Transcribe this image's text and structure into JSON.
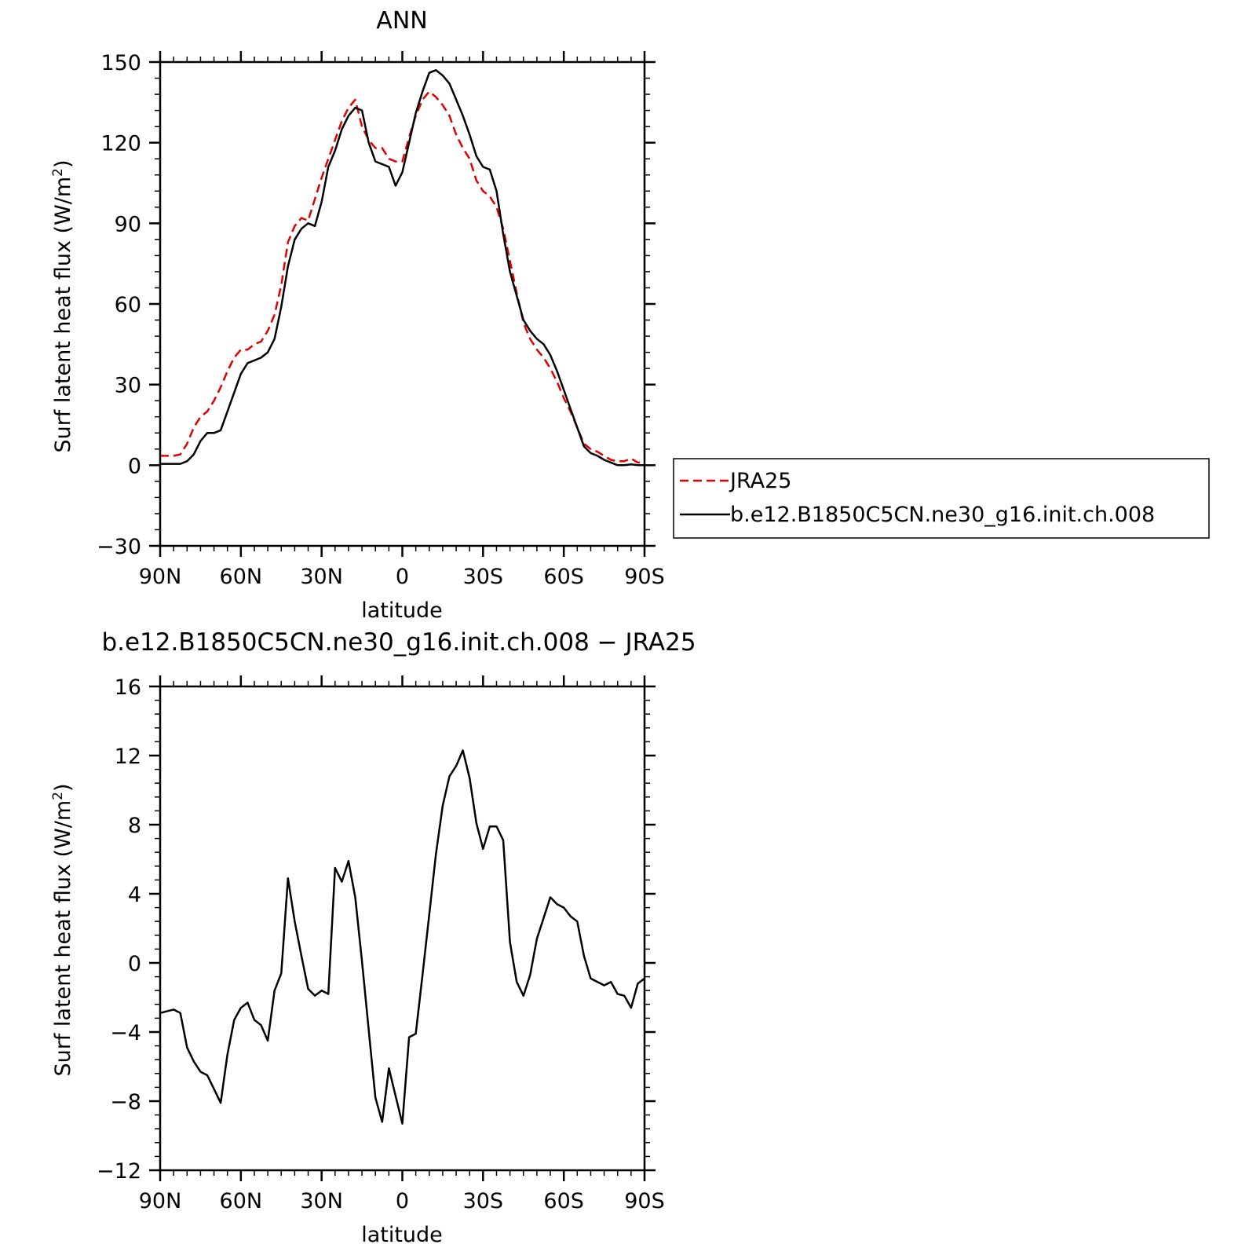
{
  "chart_data": [
    {
      "type": "line",
      "title": "ANN",
      "xlabel": "latitude",
      "ylabel": "Surf latent heat flux (W/m",
      "ylabel_sup": "2",
      "ylabel_end": ")",
      "xlim": [
        90,
        -90
      ],
      "ylim": [
        -30,
        150
      ],
      "y_ticks": [
        150,
        120,
        90,
        60,
        30,
        0,
        -30
      ],
      "y_tick_labels": [
        "150",
        "120",
        "90",
        "60",
        "30",
        "0",
        "−30"
      ],
      "x_ticks": [
        90,
        60,
        30,
        0,
        -30,
        -60,
        -90
      ],
      "x_tick_labels": [
        "90N",
        "60N",
        "30N",
        "0",
        "30S",
        "60S",
        "90S"
      ],
      "legend_position": "right",
      "series": [
        {
          "name": "JRA25",
          "color": "#e00000",
          "dash": "dashed",
          "x": [
            90,
            87.5,
            85,
            82.5,
            80,
            77.5,
            75,
            72.5,
            70,
            67.5,
            65,
            62.5,
            60,
            57.5,
            55,
            52.5,
            50,
            47.5,
            45,
            42.5,
            40,
            37.5,
            35,
            32.5,
            30,
            27.5,
            25,
            22.5,
            20,
            17.5,
            15,
            12.5,
            10,
            7.5,
            5,
            2.5,
            0,
            -2.5,
            -5,
            -7.5,
            -10,
            -12.5,
            -15,
            -17.5,
            -20,
            -22.5,
            -25,
            -27.5,
            -30,
            -32.5,
            -35,
            -37.5,
            -40,
            -42.5,
            -45,
            -47.5,
            -50,
            -52.5,
            -55,
            -57.5,
            -60,
            -62.5,
            -65,
            -67.5,
            -70,
            -72.5,
            -75,
            -77.5,
            -80,
            -82.5,
            -85,
            -87.5,
            -90
          ],
          "values": [
            3.5,
            3.5,
            3.5,
            4,
            8,
            14,
            18,
            20,
            24,
            29,
            35,
            40,
            43,
            43,
            45,
            46,
            50,
            56,
            67,
            83,
            89,
            92,
            91,
            99,
            107,
            114,
            121,
            128,
            133,
            136,
            126,
            121,
            118,
            118,
            114,
            113,
            113,
            122,
            130,
            136,
            139,
            137,
            134,
            130,
            123,
            118,
            114,
            106,
            102,
            100,
            96,
            88,
            76,
            64,
            53,
            47,
            43,
            40,
            36,
            31,
            25,
            20,
            14,
            8,
            6,
            5,
            3.5,
            2,
            1.5,
            1.5,
            2.5,
            1,
            1
          ]
        },
        {
          "name": "b.e12.B1850C5CN.ne30_g16.init.ch.008",
          "color": "#000000",
          "dash": "solid",
          "x": [
            90,
            87.5,
            85,
            82.5,
            80,
            77.5,
            75,
            72.5,
            70,
            67.5,
            65,
            62.5,
            60,
            57.5,
            55,
            52.5,
            50,
            47.5,
            45,
            42.5,
            40,
            37.5,
            35,
            32.5,
            30,
            27.5,
            25,
            22.5,
            20,
            17.5,
            15,
            12.5,
            10,
            7.5,
            5,
            2.5,
            0,
            -2.5,
            -5,
            -7.5,
            -10,
            -12.5,
            -15,
            -17.5,
            -20,
            -22.5,
            -25,
            -27.5,
            -30,
            -32.5,
            -35,
            -37.5,
            -40,
            -42.5,
            -45,
            -47.5,
            -50,
            -52.5,
            -55,
            -57.5,
            -60,
            -62.5,
            -65,
            -67.5,
            -70,
            -72.5,
            -75,
            -77.5,
            -80,
            -82.5,
            -85,
            -87.5,
            -90
          ],
          "values": [
            0.5,
            0.5,
            0.5,
            0.5,
            1.5,
            4,
            9,
            12,
            12,
            13,
            20,
            27,
            34,
            38,
            39,
            40,
            42,
            47,
            59,
            74,
            84,
            88,
            90,
            89,
            98,
            111,
            117,
            125,
            130,
            133,
            132,
            120,
            113,
            112,
            111,
            104,
            109,
            120,
            131,
            139,
            146,
            147,
            145,
            142,
            136,
            130,
            123,
            115,
            111,
            110,
            102,
            86,
            72,
            63,
            54,
            50,
            47,
            45,
            41,
            35,
            28,
            21,
            14,
            7,
            4.5,
            3.5,
            2,
            1,
            0,
            0,
            0.3,
            0,
            0
          ]
        }
      ]
    },
    {
      "type": "line",
      "title": "b.e12.B1850C5CN.ne30_g16.init.ch.008 − JRA25",
      "xlabel": "latitude",
      "ylabel": "Surf latent heat flux (W/m",
      "ylabel_sup": "2",
      "ylabel_end": ")",
      "xlim": [
        90,
        -90
      ],
      "ylim": [
        -12,
        16
      ],
      "y_ticks": [
        16,
        12,
        8,
        4,
        0,
        -4,
        -8,
        -12
      ],
      "y_tick_labels": [
        "16",
        "12",
        "8",
        "4",
        "0",
        "−4",
        "−8",
        "−12"
      ],
      "x_ticks": [
        90,
        60,
        30,
        0,
        -30,
        -60,
        -90
      ],
      "x_tick_labels": [
        "90N",
        "60N",
        "30N",
        "0",
        "30S",
        "60S",
        "90S"
      ],
      "series": [
        {
          "color": "#000000",
          "dash": "solid",
          "x": [
            90,
            87.5,
            85,
            82.5,
            80,
            77.5,
            75,
            72.5,
            70,
            67.5,
            65,
            62.5,
            60,
            57.5,
            55,
            52.5,
            50,
            47.5,
            45,
            42.5,
            40,
            37.5,
            35,
            32.5,
            30,
            27.5,
            25,
            22.5,
            20,
            17.5,
            15,
            12.5,
            10,
            7.5,
            5,
            2.5,
            0,
            -2.5,
            -5,
            -7.5,
            -10,
            -12.5,
            -15,
            -17.5,
            -20,
            -22.5,
            -25,
            -27.5,
            -30,
            -32.5,
            -35,
            -37.5,
            -40,
            -42.5,
            -45,
            -47.5,
            -50,
            -52.5,
            -55,
            -57.5,
            -60,
            -62.5,
            -65,
            -67.5,
            -70,
            -72.5,
            -75,
            -77.5,
            -80,
            -82.5,
            -85,
            -87.5,
            -90
          ],
          "values": [
            -2.9,
            -2.8,
            -2.7,
            -2.9,
            -4.9,
            -5.7,
            -6.3,
            -6.5,
            -7.3,
            -8.1,
            -5.3,
            -3.3,
            -2.6,
            -2.3,
            -3.3,
            -3.6,
            -4.5,
            -1.6,
            -0.6,
            4.9,
            2.4,
            0.4,
            -1.5,
            -1.9,
            -1.6,
            -1.8,
            5.5,
            4.7,
            5.9,
            3.8,
            0.1,
            -3.9,
            -7.8,
            -9.2,
            -6.1,
            -7.7,
            -9.3,
            -4.3,
            -4.1,
            -0.7,
            2.8,
            6.3,
            9.1,
            10.8,
            11.4,
            12.3,
            10.7,
            8.1,
            6.6,
            7.9,
            7.9,
            7.1,
            1.2,
            -1.1,
            -1.9,
            -0.7,
            1.4,
            2.6,
            3.8,
            3.4,
            3.2,
            2.7,
            2.4,
            0.4,
            -0.9,
            -1.1,
            -1.3,
            -1.1,
            -1.8,
            -1.9,
            -2.6,
            -1.2,
            -0.9
          ]
        }
      ]
    }
  ]
}
